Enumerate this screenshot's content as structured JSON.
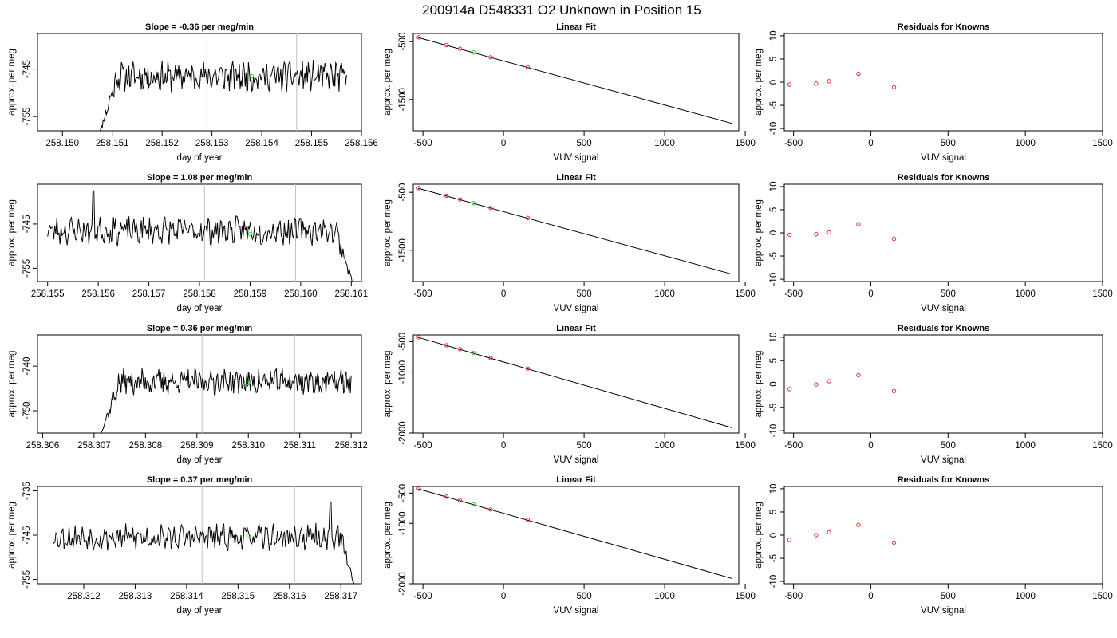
{
  "page_title": "200914a      D548331    O2 Unknown in Position  15",
  "chart_data": [
    {
      "type": "line",
      "title": "Slope =  -0.36  per meg/min",
      "xlabel": "day of year",
      "ylabel": "approx. per meg",
      "xlim": [
        258.1495,
        258.156
      ],
      "ylim": [
        -758,
        -737.5
      ],
      "xticks": [
        "258.150",
        "258.151",
        "258.152",
        "258.153",
        "258.154",
        "258.155",
        "258.156"
      ],
      "xtick_values": [
        258.15,
        258.151,
        258.152,
        258.153,
        258.154,
        258.155,
        258.156
      ],
      "yticks": [
        "-745",
        "-755"
      ],
      "ytick_values": [
        -745,
        -755
      ],
      "vlines": [
        258.1529,
        258.1547
      ],
      "trace": {
        "start": 258.1507,
        "end": 258.1557,
        "baseline": -746.5,
        "noise": 2.6,
        "seed": 11,
        "ramp_from": -760,
        "ramp_len": 0.0004
      },
      "mean_marker": {
        "x": 258.1538,
        "y": -746.5
      }
    },
    {
      "type": "scatter",
      "title": "Linear Fit",
      "xlabel": "VUV signal",
      "ylabel": "approx. per meg",
      "xlim": [
        -560,
        1460
      ],
      "ylim": [
        -2040,
        -360
      ],
      "xticks": [
        "-500",
        "0",
        "500",
        "1000",
        "1500"
      ],
      "xtick_values": [
        -500,
        0,
        500,
        1000,
        1500
      ],
      "yticks": [
        "-500",
        "-1500"
      ],
      "ytick_values": [
        -500,
        -1500
      ],
      "fit_line": [
        [
          -530,
          -430
        ],
        [
          1420,
          -1915
        ]
      ],
      "knowns": [
        [
          -526,
          -427
        ],
        [
          -354,
          -559
        ],
        [
          -270,
          -623
        ],
        [
          -80,
          -770
        ],
        [
          150,
          -942
        ]
      ],
      "unknown": [
        [
          -186,
          -687
        ]
      ]
    },
    {
      "type": "scatter",
      "title": "Residuals for Knowns",
      "xlabel": "VUV signal",
      "ylabel": "approx. per meg",
      "xlim": [
        -560,
        1500
      ],
      "ylim": [
        -10.5,
        10.5
      ],
      "xticks": [
        "-500",
        "0",
        "500",
        "1000",
        "1500"
      ],
      "xtick_values": [
        -500,
        0,
        500,
        1000,
        1500
      ],
      "yticks": [
        "-10",
        "-5",
        "0",
        "5",
        "10"
      ],
      "ytick_values": [
        -10,
        -5,
        0,
        5,
        10
      ],
      "knowns": [
        [
          -526,
          -0.5
        ],
        [
          -354,
          -0.3
        ],
        [
          -270,
          0.2
        ],
        [
          -80,
          1.8
        ],
        [
          150,
          -1.1
        ]
      ]
    },
    {
      "type": "line",
      "title": "Slope =  1.08  per meg/min",
      "xlabel": "day of year",
      "ylabel": "approx. per meg",
      "xlim": [
        258.1548,
        258.1612
      ],
      "ylim": [
        -758,
        -736
      ],
      "xticks": [
        "258.155",
        "258.156",
        "258.157",
        "258.158",
        "258.159",
        "258.160",
        "258.161"
      ],
      "xtick_values": [
        258.155,
        258.156,
        258.157,
        258.158,
        258.159,
        258.16,
        258.161
      ],
      "yticks": [
        "-745",
        "-755"
      ],
      "ytick_values": [
        -745,
        -755
      ],
      "vlines": [
        258.1581,
        258.1599
      ],
      "trace": {
        "start": 258.155,
        "end": 258.1611,
        "baseline": -746.5,
        "noise": 2.6,
        "seed": 23,
        "tail_to": -761,
        "tail_len": 0.0004,
        "spike": [
          258.1559,
          -737.5
        ]
      },
      "mean_marker": {
        "x": 258.159,
        "y": -747.3
      }
    },
    {
      "type": "scatter",
      "title": "Linear Fit",
      "xlabel": "VUV signal",
      "ylabel": "approx. per meg",
      "xlim": [
        -560,
        1460
      ],
      "ylim": [
        -2040,
        -360
      ],
      "xticks": [
        "-500",
        "0",
        "500",
        "1000",
        "1500"
      ],
      "xtick_values": [
        -500,
        0,
        500,
        1000,
        1500
      ],
      "yticks": [
        "-500",
        "-1500"
      ],
      "ytick_values": [
        -500,
        -1500
      ],
      "fit_line": [
        [
          -530,
          -430
        ],
        [
          1420,
          -1915
        ]
      ],
      "knowns": [
        [
          -526,
          -427
        ],
        [
          -354,
          -559
        ],
        [
          -270,
          -623
        ],
        [
          -80,
          -770
        ],
        [
          150,
          -942
        ]
      ],
      "unknown": [
        [
          -186,
          -687
        ]
      ]
    },
    {
      "type": "scatter",
      "title": "Residuals for Knowns",
      "xlabel": "VUV signal",
      "ylabel": "approx. per meg",
      "xlim": [
        -560,
        1500
      ],
      "ylim": [
        -10.5,
        10.5
      ],
      "xticks": [
        "-500",
        "0",
        "500",
        "1000",
        "1500"
      ],
      "xtick_values": [
        -500,
        0,
        500,
        1000,
        1500
      ],
      "yticks": [
        "-10",
        "-5",
        "0",
        "5",
        "10"
      ],
      "ytick_values": [
        -10,
        -5,
        0,
        5,
        10
      ],
      "knowns": [
        [
          -526,
          -0.4
        ],
        [
          -354,
          -0.3
        ],
        [
          -270,
          0.1
        ],
        [
          -80,
          1.9
        ],
        [
          150,
          -1.3
        ]
      ]
    },
    {
      "type": "line",
      "title": "Slope =  0.36  per meg/min",
      "xlabel": "day of year",
      "ylabel": "approx. per meg",
      "xlim": [
        258.3059,
        258.3122
      ],
      "ylim": [
        -755,
        -733
      ],
      "xticks": [
        "258.306",
        "258.307",
        "258.308",
        "258.309",
        "258.310",
        "258.311",
        "258.312"
      ],
      "xtick_values": [
        258.306,
        258.307,
        258.308,
        258.309,
        258.31,
        258.311,
        258.312
      ],
      "yticks": [
        "-740",
        "-750"
      ],
      "ytick_values": [
        -740,
        -750
      ],
      "vlines": [
        258.3091,
        258.3109
      ],
      "trace": {
        "start": 258.3071,
        "end": 258.312,
        "baseline": -743.5,
        "noise": 2.4,
        "seed": 37,
        "ramp_from": -756,
        "ramp_len": 0.0004
      },
      "mean_marker": {
        "x": 258.31,
        "y": -743.8
      }
    },
    {
      "type": "scatter",
      "title": "Linear Fit",
      "xlabel": "VUV signal",
      "ylabel": "approx. per meg",
      "xlim": [
        -560,
        1460
      ],
      "ylim": [
        -2000,
        -390
      ],
      "xticks": [
        "-500",
        "0",
        "500",
        "1000",
        "1500"
      ],
      "xtick_values": [
        -500,
        0,
        500,
        1000,
        1500
      ],
      "yticks": [
        "-500",
        "-1000",
        "-2000"
      ],
      "ytick_values": [
        -500,
        -1000,
        -2000
      ],
      "fit_line": [
        [
          -530,
          -430
        ],
        [
          1420,
          -1915
        ]
      ],
      "knowns": [
        [
          -526,
          -427
        ],
        [
          -354,
          -559
        ],
        [
          -270,
          -623
        ],
        [
          -80,
          -770
        ],
        [
          150,
          -942
        ]
      ],
      "unknown": [
        [
          -186,
          -687
        ]
      ]
    },
    {
      "type": "scatter",
      "title": "Residuals for Knowns",
      "xlabel": "VUV signal",
      "ylabel": "approx. per meg",
      "xlim": [
        -560,
        1500
      ],
      "ylim": [
        -10.5,
        10.5
      ],
      "xticks": [
        "-500",
        "0",
        "500",
        "1000",
        "1500"
      ],
      "xtick_values": [
        -500,
        0,
        500,
        1000,
        1500
      ],
      "yticks": [
        "-10",
        "-5",
        "0",
        "5",
        "10"
      ],
      "ytick_values": [
        -10,
        -5,
        0,
        5,
        10
      ],
      "knowns": [
        [
          -526,
          -1.1
        ],
        [
          -354,
          -0.1
        ],
        [
          -270,
          0.6
        ],
        [
          -80,
          1.9
        ],
        [
          150,
          -1.5
        ]
      ]
    },
    {
      "type": "line",
      "title": "Slope =  0.37  per meg/min",
      "xlabel": "day of year",
      "ylabel": "approx. per meg",
      "xlim": [
        258.3111,
        258.3174
      ],
      "ylim": [
        -756,
        -734
      ],
      "xticks": [
        "258.312",
        "258.313",
        "258.314",
        "258.315",
        "258.316",
        "258.317"
      ],
      "xtick_values": [
        258.312,
        258.313,
        258.314,
        258.315,
        258.316,
        258.317
      ],
      "yticks": [
        "-735",
        "-745",
        "-755"
      ],
      "ytick_values": [
        -735,
        -745,
        -755
      ],
      "vlines": [
        258.3143,
        258.3161
      ],
      "trace": {
        "start": 258.3114,
        "end": 258.3173,
        "baseline": -745.5,
        "noise": 2.4,
        "seed": 53,
        "tail_to": -758,
        "tail_len": 0.0003,
        "spike": [
          258.3168,
          -737.5
        ]
      },
      "mean_marker": {
        "x": 258.3152,
        "y": -745.2
      }
    },
    {
      "type": "scatter",
      "title": "Linear Fit",
      "xlabel": "VUV signal",
      "ylabel": "approx. per meg",
      "xlim": [
        -560,
        1460
      ],
      "ylim": [
        -2000,
        -390
      ],
      "xticks": [
        "-500",
        "0",
        "500",
        "1000",
        "1500"
      ],
      "xtick_values": [
        -500,
        0,
        500,
        1000,
        1500
      ],
      "yticks": [
        "-500",
        "-1000",
        "-2000"
      ],
      "ytick_values": [
        -500,
        -1000,
        -2000
      ],
      "fit_line": [
        [
          -530,
          -430
        ],
        [
          1420,
          -1915
        ]
      ],
      "knowns": [
        [
          -526,
          -427
        ],
        [
          -354,
          -559
        ],
        [
          -270,
          -623
        ],
        [
          -80,
          -770
        ],
        [
          150,
          -942
        ]
      ],
      "unknown": [
        [
          -186,
          -687
        ]
      ]
    },
    {
      "type": "scatter",
      "title": "Residuals for Knowns",
      "xlabel": "VUV signal",
      "ylabel": "approx. per meg",
      "xlim": [
        -560,
        1500
      ],
      "ylim": [
        -10.5,
        10.5
      ],
      "xticks": [
        "-500",
        "0",
        "500",
        "1000",
        "1500"
      ],
      "xtick_values": [
        -500,
        0,
        500,
        1000,
        1500
      ],
      "yticks": [
        "-10",
        "-5",
        "0",
        "5",
        "10"
      ],
      "ytick_values": [
        -10,
        -5,
        0,
        5,
        10
      ],
      "knowns": [
        [
          -526,
          -1.0
        ],
        [
          -354,
          0.0
        ],
        [
          -270,
          0.6
        ],
        [
          -80,
          2.2
        ],
        [
          150,
          -1.6
        ]
      ]
    }
  ],
  "colors": {
    "trace": "#000000",
    "fit_line": "#000000",
    "known_marker": "#e03030",
    "unknown_marker": "#22dd22",
    "vline": "#bfbfbf",
    "axis": "#000000"
  }
}
